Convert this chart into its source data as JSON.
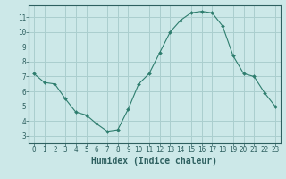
{
  "x": [
    0,
    1,
    2,
    3,
    4,
    5,
    6,
    7,
    8,
    9,
    10,
    11,
    12,
    13,
    14,
    15,
    16,
    17,
    18,
    19,
    20,
    21,
    22,
    23
  ],
  "y": [
    7.2,
    6.6,
    6.5,
    5.5,
    4.6,
    4.4,
    3.8,
    3.3,
    3.4,
    4.8,
    6.5,
    7.2,
    8.6,
    10.0,
    10.8,
    11.3,
    11.4,
    11.3,
    10.4,
    8.4,
    7.2,
    7.0,
    5.9,
    5.0
  ],
  "line_color": "#2e7d6e",
  "marker": "D",
  "marker_size": 2.0,
  "bg_color": "#cce8e8",
  "grid_color": "#aacece",
  "xlabel": "Humidex (Indice chaleur)",
  "xlim": [
    -0.5,
    23.5
  ],
  "ylim": [
    2.5,
    11.8
  ],
  "yticks": [
    3,
    4,
    5,
    6,
    7,
    8,
    9,
    10,
    11
  ],
  "xticks": [
    0,
    1,
    2,
    3,
    4,
    5,
    6,
    7,
    8,
    9,
    10,
    11,
    12,
    13,
    14,
    15,
    16,
    17,
    18,
    19,
    20,
    21,
    22,
    23
  ],
  "tick_label_fontsize": 5.5,
  "xlabel_fontsize": 7.0,
  "axis_color": "#2e6060"
}
